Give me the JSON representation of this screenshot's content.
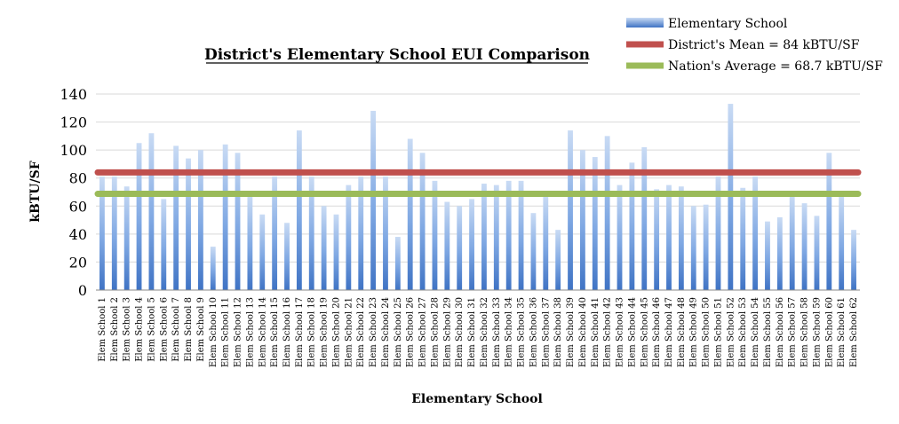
{
  "chart_data": {
    "type": "bar",
    "title": "District's Elementary School EUI Comparison",
    "xlabel": "Elementary School",
    "ylabel": "kBTU/SF",
    "ylim": [
      0,
      140
    ],
    "yticks": [
      0,
      20,
      40,
      60,
      80,
      100,
      120,
      140
    ],
    "grid": "horizontal",
    "legend_position": "top-right",
    "categories": [
      "Elem School 1",
      "Elem School 2",
      "Elem School 3",
      "Elem School 4",
      "Elem School 5",
      "Elem School 6",
      "Elem School 7",
      "Elem School 8",
      "Elem School 9",
      "Elem School 10",
      "Elem School 11",
      "Elem School 12",
      "Elem School 13",
      "Elem School 14",
      "Elem School 15",
      "Elem School 16",
      "Elem School 17",
      "Elem School 18",
      "Elem School 19",
      "Elem School 20",
      "Elem School 21",
      "Elem School 22",
      "Elem School 23",
      "Elem School 24",
      "Elem School 25",
      "Elem School 26",
      "Elem School 27",
      "Elem School 28",
      "Elem School 29",
      "Elem School 30",
      "Elem School 31",
      "Elem School 32",
      "Elem School 33",
      "Elem School 34",
      "Elem School 35",
      "Elem School 36",
      "Elem School 37",
      "Elem School 38",
      "Elem School 39",
      "Elem School 40",
      "Elem School 41",
      "Elem School 42",
      "Elem School 43",
      "Elem School 44",
      "Elem School 45",
      "Elem School 46",
      "Elem School 47",
      "Elem School 48",
      "Elem School 49",
      "Elem School 50",
      "Elem School 51",
      "Elem School 52",
      "Elem School 53",
      "Elem School 54",
      "Elem School 55",
      "Elem School 56",
      "Elem School 57",
      "Elem School 58",
      "Elem School 59",
      "Elem School 60",
      "Elem School 61",
      "Elem School 62"
    ],
    "series": [
      {
        "name": "Elementary School",
        "color": "#5b8fd6",
        "values": [
          81,
          81,
          74,
          105,
          112,
          65,
          103,
          94,
          100,
          31,
          104,
          98,
          67,
          54,
          81,
          48,
          114,
          81,
          60,
          54,
          75,
          81,
          128,
          81,
          38,
          108,
          98,
          78,
          63,
          60,
          65,
          76,
          75,
          78,
          78,
          55,
          67,
          43,
          114,
          100,
          95,
          110,
          75,
          91,
          102,
          72,
          75,
          74,
          60,
          61,
          81,
          133,
          73,
          81,
          49,
          52,
          67,
          62,
          53,
          98,
          67,
          43
        ]
      }
    ],
    "reference_lines": [
      {
        "name": "District's Mean = 84 kBTU/SF",
        "value": 84,
        "color": "#c0504d"
      },
      {
        "name": "Nation's Average = 68.7 kBTU/SF",
        "value": 68.7,
        "color": "#9bbb59"
      }
    ]
  }
}
